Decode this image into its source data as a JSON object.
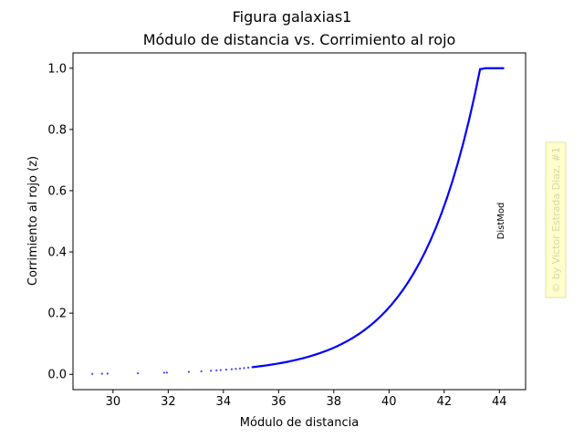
{
  "chart_data": {
    "type": "scatter",
    "suptitle": "Figura galaxias1",
    "title": "Módulo de distancia vs. Corrimiento al rojo",
    "xlabel": "Módulo de distancia",
    "ylabel": "Corrimiento al rojo (z)",
    "xlim": [
      28.55,
      44.95
    ],
    "ylim": [
      -0.05,
      1.05
    ],
    "xticks": [
      30,
      32,
      34,
      36,
      38,
      40,
      42,
      44
    ],
    "yticks": [
      0.0,
      0.2,
      0.4,
      0.6,
      0.8,
      1.0
    ],
    "xtick_labels": [
      "30",
      "32",
      "34",
      "36",
      "38",
      "40",
      "42",
      "44"
    ],
    "ytick_labels": [
      "0.0",
      "0.2",
      "0.4",
      "0.6",
      "0.8",
      "1.0"
    ],
    "grid": false,
    "marker_color": "#0000ff",
    "series": [
      {
        "x": [
          29.25,
          29.6,
          29.8,
          30.9,
          31.85,
          31.95,
          32.75,
          33.2,
          33.55,
          33.75,
          33.9,
          34.1,
          34.3,
          34.45,
          34.6,
          34.75,
          34.9,
          35.05,
          35.2,
          35.35,
          35.5,
          35.65,
          35.8,
          35.95,
          36.1,
          36.3,
          36.5,
          36.7,
          36.9,
          37.1,
          37.3,
          37.5,
          37.7,
          37.9,
          38.1,
          38.3,
          38.5,
          38.7,
          38.9,
          39.1,
          39.3,
          39.5,
          39.7,
          39.9,
          40.1,
          40.3,
          40.5,
          40.7,
          40.9,
          41.1,
          41.3,
          41.5,
          41.7,
          41.9,
          42.1,
          42.3,
          42.5,
          42.7,
          42.9,
          43.1,
          43.3,
          43.5,
          43.7,
          43.9,
          44.0,
          44.1,
          44.15
        ],
        "y": [
          0.0016,
          0.0019,
          0.0021,
          0.0035,
          0.0054,
          0.0057,
          0.0082,
          0.0101,
          0.0118,
          0.013,
          0.0139,
          0.0152,
          0.0167,
          0.0179,
          0.0191,
          0.0205,
          0.0219,
          0.0234,
          0.025,
          0.0267,
          0.0285,
          0.0305,
          0.0326,
          0.0348,
          0.0372,
          0.0406,
          0.0444,
          0.0485,
          0.053,
          0.058,
          0.0634,
          0.0694,
          0.0759,
          0.0831,
          0.091,
          0.0997,
          0.1092,
          0.1197,
          0.1312,
          0.1439,
          0.1578,
          0.1731,
          0.1899,
          0.2083,
          0.2285,
          0.2507,
          0.2751,
          0.3018,
          0.3311,
          0.3632,
          0.3984,
          0.4369,
          0.4791,
          0.5253,
          0.5759,
          0.6313,
          0.6919,
          0.7582,
          0.8307,
          0.91,
          0.9967,
          1.0,
          1.0,
          1.0,
          1.0,
          1.0,
          1.0
        ]
      }
    ],
    "annotation": "DistMod"
  },
  "watermark": "© by Victor Estrada Diaz, #1"
}
